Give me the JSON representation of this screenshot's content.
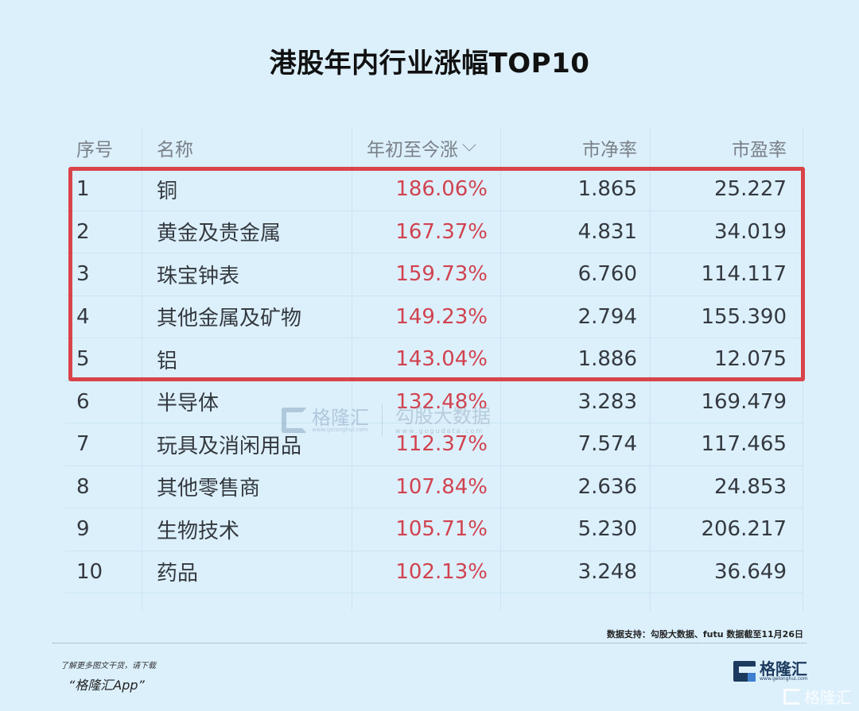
{
  "title": "港股年内行业涨幅TOP10",
  "table": {
    "headers": {
      "index": "序号",
      "name": "名称",
      "ytd_change": "年初至今涨",
      "pb": "市净率",
      "pe": "市盈率"
    },
    "sort_icon": "chevron-down-icon",
    "rows": [
      {
        "index": "1",
        "name": "铜",
        "ytd_change": "186.06%",
        "pb": "1.865",
        "pe": "25.227"
      },
      {
        "index": "2",
        "name": "黄金及贵金属",
        "ytd_change": "167.37%",
        "pb": "4.831",
        "pe": "34.019"
      },
      {
        "index": "3",
        "name": "珠宝钟表",
        "ytd_change": "159.73%",
        "pb": "6.760",
        "pe": "114.117"
      },
      {
        "index": "4",
        "name": "其他金属及矿物",
        "ytd_change": "149.23%",
        "pb": "2.794",
        "pe": "155.390"
      },
      {
        "index": "5",
        "name": "铝",
        "ytd_change": "143.04%",
        "pb": "1.886",
        "pe": "12.075"
      },
      {
        "index": "6",
        "name": "半导体",
        "ytd_change": "132.48%",
        "pb": "3.283",
        "pe": "169.479"
      },
      {
        "index": "7",
        "name": "玩具及消闲用品",
        "ytd_change": "112.37%",
        "pb": "7.574",
        "pe": "117.465"
      },
      {
        "index": "8",
        "name": "其他零售商",
        "ytd_change": "107.84%",
        "pb": "2.636",
        "pe": "24.853"
      },
      {
        "index": "9",
        "name": "生物技术",
        "ytd_change": "105.71%",
        "pb": "5.230",
        "pe": "206.217"
      },
      {
        "index": "10",
        "name": "药品",
        "ytd_change": "102.13%",
        "pb": "3.248",
        "pe": "36.649"
      }
    ],
    "highlighted_rows": [
      1,
      2,
      3,
      4,
      5
    ]
  },
  "watermark": {
    "brand": "格隆汇",
    "brand_url": "www.gelonghui.com",
    "data_brand": "勾股大数据",
    "data_url": "www.gogudata.com"
  },
  "footer": {
    "source": "数据支持：勾股大数据、futu 数据截至11月26日",
    "promo_line1": "了解更多图文干货，请下载",
    "promo_line2": "“格隆汇App”",
    "logo_text": "格隆汇",
    "logo_url": "www.gelonghui.com",
    "ghost_logo_text": "格隆汇"
  },
  "colors": {
    "background": "#dcf0fc",
    "highlight_border": "#d9434a",
    "positive_change": "#d0434f",
    "text": "#34393f",
    "header_text": "#7a8088"
  },
  "chart_data": {
    "type": "table",
    "title": "港股年内行业涨幅TOP10",
    "columns": [
      "序号",
      "名称",
      "年初至今涨",
      "市净率",
      "市盈率"
    ],
    "categories": [
      "铜",
      "黄金及贵金属",
      "珠宝钟表",
      "其他金属及矿物",
      "铝",
      "半导体",
      "玩具及消闲用品",
      "其他零售商",
      "生物技术",
      "药品"
    ],
    "series": [
      {
        "name": "年初至今涨(%)",
        "values": [
          186.06,
          167.37,
          159.73,
          149.23,
          143.04,
          132.48,
          112.37,
          107.84,
          105.71,
          102.13
        ]
      },
      {
        "name": "市净率",
        "values": [
          1.865,
          4.831,
          6.76,
          2.794,
          1.886,
          3.283,
          7.574,
          2.636,
          5.23,
          3.248
        ]
      },
      {
        "name": "市盈率",
        "values": [
          25.227,
          34.019,
          114.117,
          155.39,
          12.075,
          169.479,
          117.465,
          24.853,
          206.217,
          36.649
        ]
      }
    ],
    "annotations": [
      "Rows 1-5 highlighted with red box",
      "数据支持：勾股大数据、futu 数据截至11月26日"
    ]
  }
}
